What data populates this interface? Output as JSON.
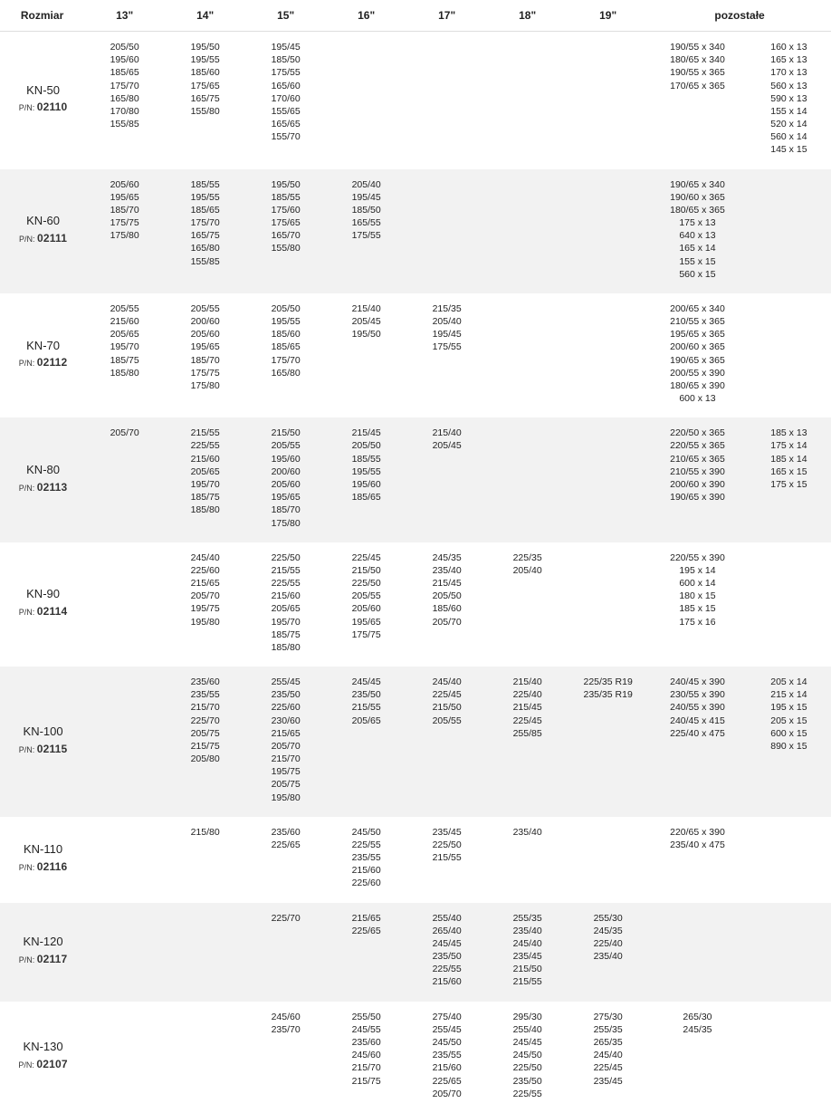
{
  "headers": {
    "rozmiar": "Rozmiar",
    "s13": "13\"",
    "s14": "14\"",
    "s15": "15\"",
    "s16": "16\"",
    "s17": "17\"",
    "s18": "18\"",
    "s19": "19\"",
    "poz": "pozostałe"
  },
  "rows": [
    {
      "name": "KN-50",
      "pn_label": "P/N:",
      "pn": "02110",
      "c13": "205/50\n195/60\n185/65\n175/70\n165/80\n170/80\n155/85",
      "c14": "195/50\n195/55\n185/60\n175/65\n165/75\n155/80",
      "c15": "195/45\n185/50\n175/55\n165/60\n170/60\n155/65\n165/65\n155/70",
      "c16": "",
      "c17": "",
      "c18": "",
      "c19": "",
      "pozA": "190/55 x 340\n180/65 x 340\n190/55 x 365\n170/65 x 365",
      "pozB": "160 x 13\n165 x 13\n170 x 13\n560 x 13\n590 x 13\n155 x 14\n520 x 14\n560 x 14\n145 x 15"
    },
    {
      "name": "KN-60",
      "pn_label": "P/N:",
      "pn": "02111",
      "c13": "205/60\n195/65\n185/70\n175/75\n175/80",
      "c14": "185/55\n195/55\n185/65\n175/70\n165/75\n165/80\n155/85",
      "c15": "195/50\n185/55\n175/60\n175/65\n165/70\n155/80",
      "c16": "205/40\n195/45\n185/50\n165/55\n175/55",
      "c17": "",
      "c18": "",
      "c19": "",
      "pozA": "190/65 x 340\n190/60 x 365\n180/65 x 365\n175 x 13\n640 x 13\n165 x 14\n155 x 15\n560 x 15",
      "pozB": ""
    },
    {
      "name": "KN-70",
      "pn_label": "P/N:",
      "pn": "02112",
      "c13": "205/55\n215/60\n205/65\n195/70\n185/75\n185/80",
      "c14": "205/55\n200/60\n205/60\n195/65\n185/70\n175/75\n175/80",
      "c15": "205/50\n195/55\n185/60\n185/65\n175/70\n165/80",
      "c16": "215/40\n205/45\n195/50",
      "c17": "215/35\n205/40\n195/45\n175/55",
      "c18": "",
      "c19": "",
      "pozA": "200/65 x 340\n210/55 x 365\n195/65 x 365\n200/60 x 365\n190/65 x 365\n200/55 x 390\n180/65 x 390\n600 x 13",
      "pozB": ""
    },
    {
      "name": "KN-80",
      "pn_label": "P/N:",
      "pn": "02113",
      "c13": "205/70",
      "c14": "215/55\n225/55\n215/60\n205/65\n195/70\n185/75\n185/80",
      "c15": "215/50\n205/55\n195/60\n200/60\n205/60\n195/65\n185/70\n175/80",
      "c16": "215/45\n205/50\n185/55\n195/55\n195/60\n185/65",
      "c17": "215/40\n205/45",
      "c18": "",
      "c19": "",
      "pozA": "220/50 x 365\n220/55 x 365\n210/65 x 365\n210/55 x 390\n200/60 x 390\n190/65 x 390",
      "pozB": "185 x 13\n175 x 14\n185 x 14\n165 x 15\n175 x 15"
    },
    {
      "name": "KN-90",
      "pn_label": "P/N:",
      "pn": "02114",
      "c13": "",
      "c14": "245/40\n225/60\n215/65\n205/70\n195/75\n195/80",
      "c15": "225/50\n215/55\n225/55\n215/60\n205/65\n195/70\n185/75\n185/80",
      "c16": "225/45\n215/50\n225/50\n205/55\n205/60\n195/65\n175/75",
      "c17": "245/35\n235/40\n215/45\n205/50\n185/60\n205/70",
      "c18": "225/35\n205/40",
      "c19": "",
      "pozA": "220/55 x 390\n195 x 14\n600 x 14\n180 x 15\n185 x 15\n175 x 16",
      "pozB": ""
    },
    {
      "name": "KN-100",
      "pn_label": "P/N:",
      "pn": "02115",
      "c13": "",
      "c14": "235/60\n235/55\n215/70\n225/70\n205/75\n215/75\n205/80",
      "c15": "255/45\n235/50\n225/60\n230/60\n215/65\n205/70\n215/70\n195/75\n205/75\n195/80",
      "c16": "245/45\n235/50\n215/55\n205/65",
      "c17": "245/40\n225/45\n215/50\n205/55",
      "c18": "215/40\n225/40\n215/45\n225/45\n255/85",
      "c19": "225/35 R19\n235/35 R19",
      "pozA": "240/45 x 390\n230/55 x 390\n240/55 x 390\n240/45 x 415\n225/40 x 475",
      "pozB": "205 x 14\n215 x 14\n195 x 15\n205 x 15\n600 x 15\n890 x 15"
    },
    {
      "name": "KN-110",
      "pn_label": "P/N:",
      "pn": "02116",
      "c13": "",
      "c14": "215/80",
      "c15": "235/60\n225/65",
      "c16": "245/50\n225/55\n235/55\n215/60\n225/60",
      "c17": "235/45\n225/50\n215/55",
      "c18": "235/40",
      "c19": "",
      "pozA": "220/65 x 390\n235/40 x 475",
      "pozB": ""
    },
    {
      "name": "KN-120",
      "pn_label": "P/N:",
      "pn": "02117",
      "c13": "",
      "c14": "",
      "c15": "225/70",
      "c16": "215/65\n225/65",
      "c17": "255/40\n265/40\n245/45\n235/50\n225/55\n215/60",
      "c18": "255/35\n235/40\n245/40\n235/45\n215/50\n215/55",
      "c19": "255/30\n245/35\n225/40\n235/40",
      "pozA": "",
      "pozB": ""
    },
    {
      "name": "KN-130",
      "pn_label": "P/N:",
      "pn": "02107",
      "c13": "",
      "c14": "",
      "c15": "245/60\n235/70",
      "c16": "255/50\n245/55\n235/60\n245/60\n215/70\n215/75",
      "c17": "275/40\n255/45\n245/50\n235/55\n215/60\n225/65\n205/70",
      "c18": "295/30\n255/40\n245/45\n245/50\n225/50\n235/50\n225/55",
      "c19": "275/30\n255/35\n265/35\n245/40\n225/45\n235/45",
      "pozA": "265/30\n245/35",
      "pozB": ""
    }
  ]
}
